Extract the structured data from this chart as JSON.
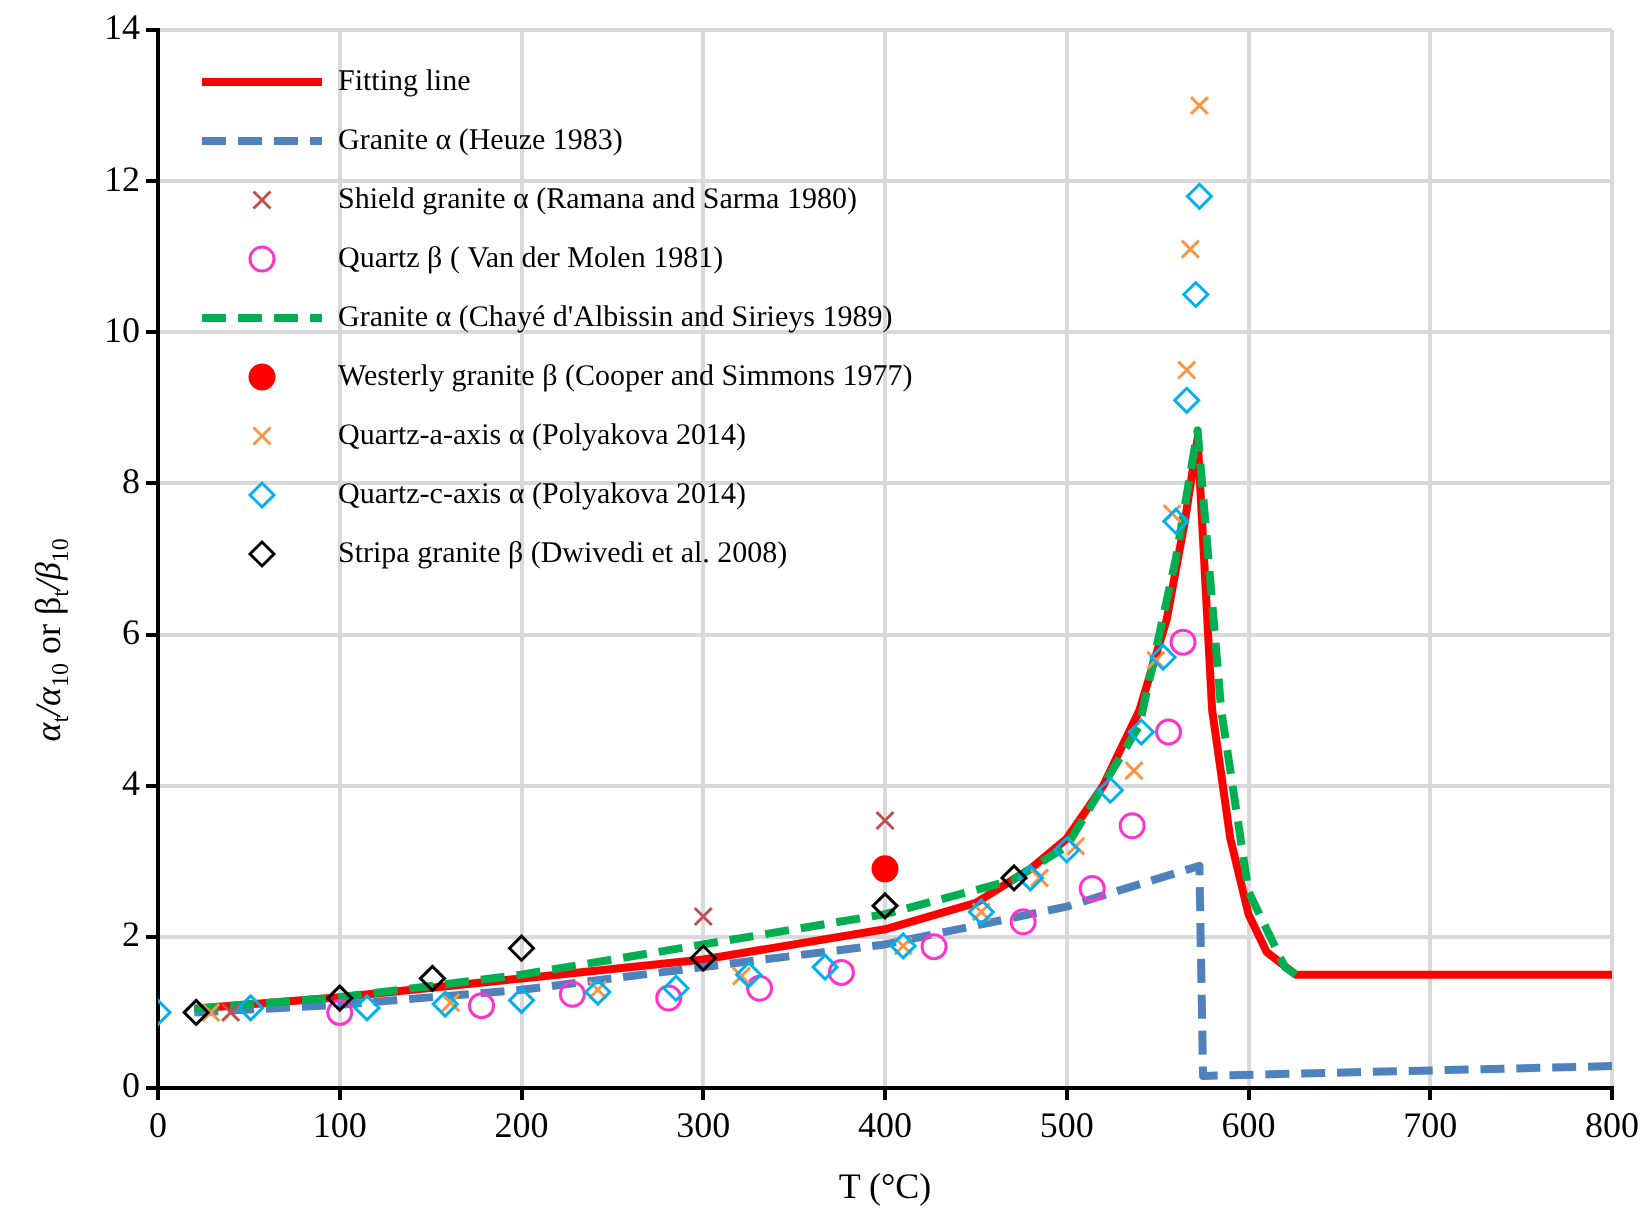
{
  "chart_data": {
    "type": "scatter",
    "xlabel": "T (°C)",
    "ylabel": "α$_{t}$/α$_{10}$ or β$_{t}$/β$_{10}$",
    "xlim": [
      0,
      800
    ],
    "xticks": [
      0,
      100,
      200,
      300,
      400,
      500,
      600,
      700,
      800
    ],
    "ylim": [
      0,
      14
    ],
    "yticks": [
      0,
      2,
      4,
      6,
      8,
      10,
      12,
      14
    ],
    "grid": true,
    "legend": "top left",
    "series": [
      {
        "name": "Fitting line",
        "type": "line",
        "color": "#ff0000",
        "line_style": "solid",
        "marker": "none",
        "x": [
          20,
          100,
          200,
          300,
          400,
          450,
          480,
          500,
          520,
          540,
          555,
          565,
          572,
          580,
          590,
          600,
          610,
          626,
          800
        ],
        "values": [
          1.05,
          1.2,
          1.45,
          1.7,
          2.1,
          2.45,
          2.9,
          3.3,
          4.0,
          5.0,
          6.2,
          7.5,
          8.6,
          5.0,
          3.3,
          2.3,
          1.8,
          1.5,
          1.5
        ]
      },
      {
        "name": "Granite α (Heuze 1983)",
        "type": "line",
        "color": "#4f81bd",
        "line_style": "dashed",
        "marker": "none",
        "x": [
          20,
          100,
          200,
          300,
          400,
          500,
          573,
          575,
          800
        ],
        "values": [
          1.0,
          1.1,
          1.3,
          1.6,
          1.9,
          2.4,
          2.94,
          0.16,
          0.29
        ]
      },
      {
        "name": "Shield granite α (Ramana and Sarma 1980)",
        "color": "#c0504d",
        "marker": "cross",
        "x": [
          40,
          300,
          400
        ],
        "values": [
          1.0,
          2.27,
          3.54
        ]
      },
      {
        "name": "Quartz β ( Van der Molen 1981)",
        "color": "#ff33cc",
        "marker": "circle",
        "x": [
          100,
          178,
          228,
          281,
          331,
          376,
          427,
          476,
          514,
          536,
          556,
          564
        ],
        "values": [
          1.0,
          1.09,
          1.24,
          1.19,
          1.32,
          1.53,
          1.87,
          2.2,
          2.64,
          3.47,
          4.71,
          5.9
        ]
      },
      {
        "name": "Granite α (Chayé d'Albissin and Sirieys 1989)",
        "type": "line",
        "color": "#00b050",
        "line_style": "dashed",
        "marker": "none",
        "x": [
          20,
          100,
          200,
          300,
          400,
          470,
          500,
          540,
          560,
          572,
          585,
          600,
          620,
          626
        ],
        "values": [
          1.05,
          1.2,
          1.5,
          1.9,
          2.3,
          2.75,
          3.2,
          4.8,
          7.0,
          8.7,
          5.0,
          2.6,
          1.6,
          1.5
        ]
      },
      {
        "name": "Westerly granite β (Cooper and Simmons 1977)",
        "color": "#ff0000",
        "marker": "circle_filled",
        "x": [
          400
        ],
        "values": [
          2.9
        ]
      },
      {
        "name": "Quartz-a-axis α (Polyakova 2014)",
        "color": "#f79646",
        "marker": "cross",
        "x": [
          29,
          161,
          242,
          321,
          410,
          453,
          485,
          505,
          537,
          549,
          558,
          566,
          568,
          573
        ],
        "values": [
          1.0,
          1.13,
          1.3,
          1.48,
          1.88,
          2.33,
          2.78,
          3.2,
          4.2,
          5.66,
          7.6,
          9.5,
          11.1,
          13.0
        ]
      },
      {
        "name": "Quartz-c-axis α (Polyakova 2014)",
        "color": "#00b0f0",
        "marker": "diamond",
        "x": [
          0,
          51,
          115,
          158,
          200,
          242,
          285,
          325,
          367,
          410,
          453,
          480,
          500,
          524,
          541,
          553,
          560,
          566,
          571,
          573
        ],
        "values": [
          1.0,
          1.06,
          1.06,
          1.11,
          1.16,
          1.27,
          1.32,
          1.5,
          1.6,
          1.88,
          2.33,
          2.78,
          3.15,
          3.94,
          4.71,
          5.7,
          7.5,
          9.1,
          10.5,
          11.8
        ]
      },
      {
        "name": "Stripa granite β (Dwivedi et al. 2008)",
        "color": "#000000",
        "marker": "diamond",
        "x": [
          21,
          100,
          151,
          200,
          300,
          400,
          471
        ],
        "values": [
          1.0,
          1.19,
          1.45,
          1.85,
          1.72,
          2.41,
          2.78
        ]
      }
    ]
  }
}
